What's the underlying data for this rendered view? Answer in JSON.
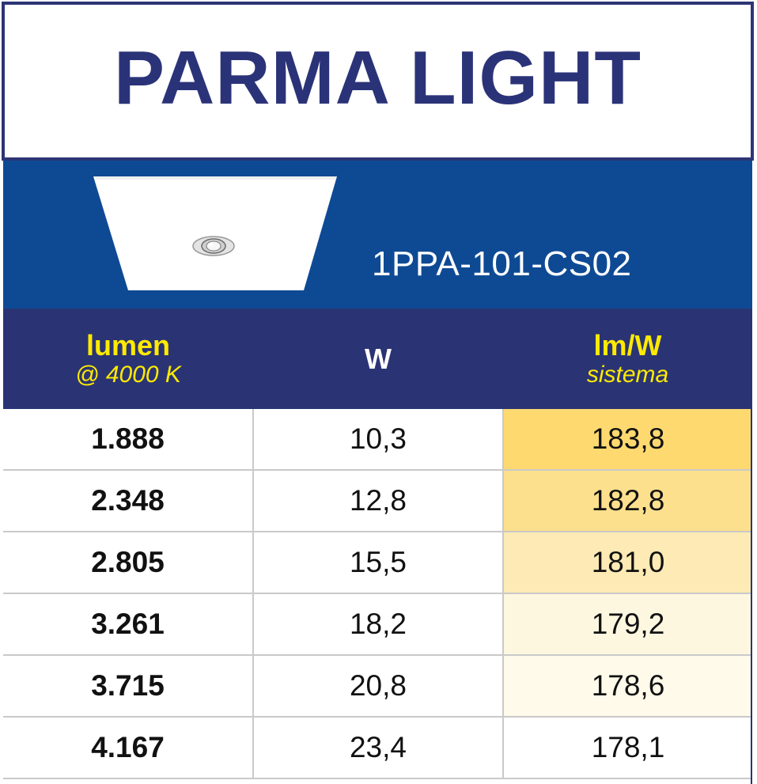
{
  "title": "PARMA LIGHT",
  "product": {
    "image_icon": "recessed-panel-light-photo",
    "code": "1PPA-101-CS02"
  },
  "headers": {
    "lumen": "lumen",
    "lumen_sub": "@ 4000 K",
    "watt": "W",
    "efficacy": "lm/W",
    "efficacy_sub": "sistema"
  },
  "colors": {
    "title_text": "#2b3378",
    "product_band": "#0e4a94",
    "header_band": "#2a3474",
    "header_accent_text": "#ffea00",
    "efficacy_shades": [
      "#fdd970",
      "#fde08d",
      "#fdeab4",
      "#fef7e0",
      "#fffaea",
      "#ffffff"
    ]
  },
  "rows": [
    {
      "lumen": "1.888",
      "w": "10,3",
      "lmw": "183,8"
    },
    {
      "lumen": "2.348",
      "w": "12,8",
      "lmw": "182,8"
    },
    {
      "lumen": "2.805",
      "w": "15,5",
      "lmw": "181,0"
    },
    {
      "lumen": "3.261",
      "w": "18,2",
      "lmw": "179,2"
    },
    {
      "lumen": "3.715",
      "w": "20,8",
      "lmw": "178,6"
    },
    {
      "lumen": "4.167",
      "w": "23,4",
      "lmw": "178,1"
    }
  ]
}
